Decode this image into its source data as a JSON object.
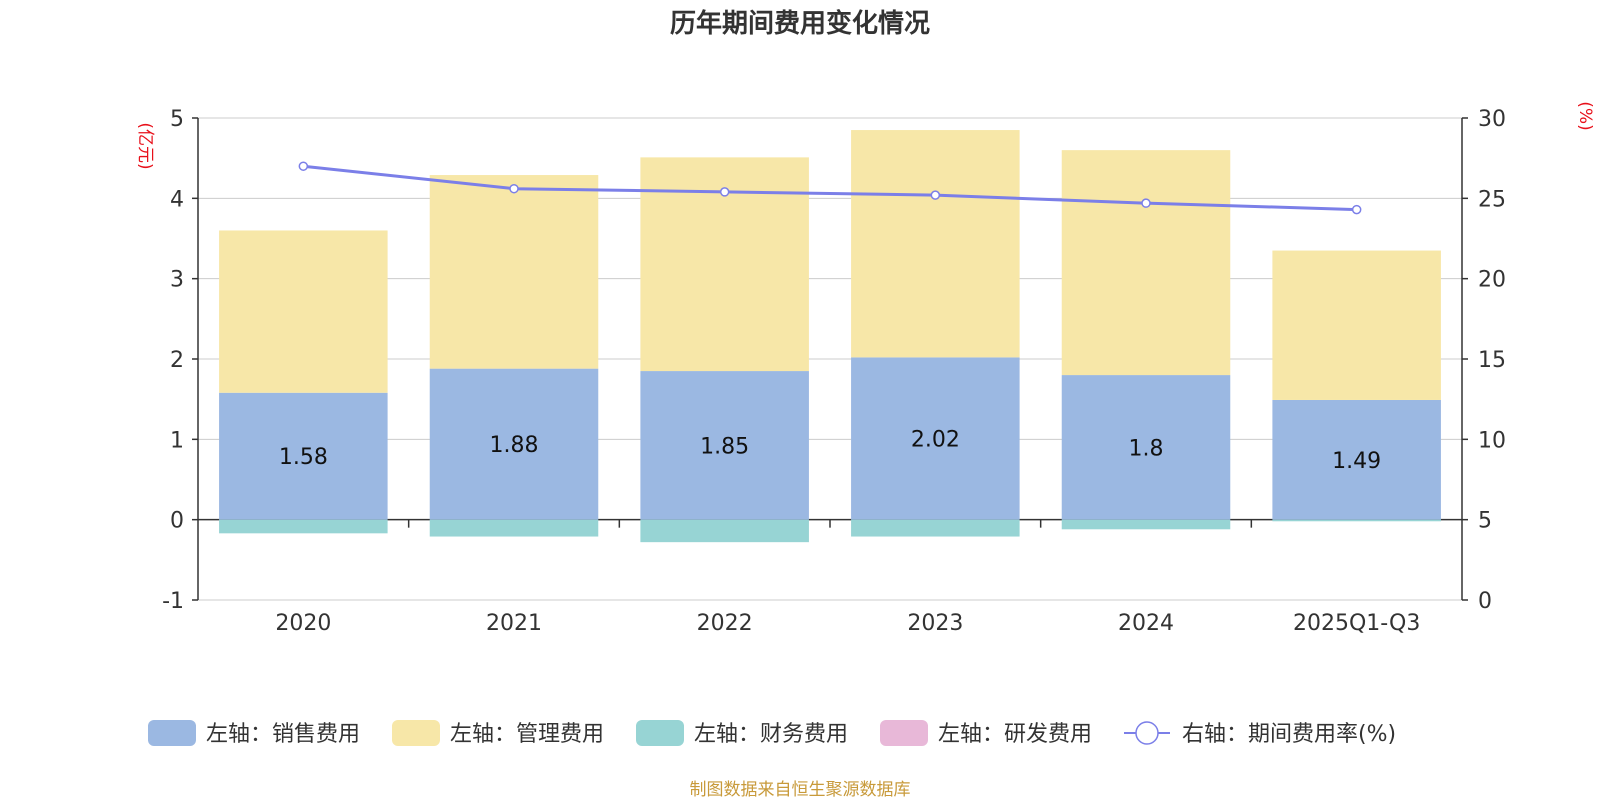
{
  "chart_data": {
    "type": "bar",
    "title": "历年期间费用变化情况",
    "categories": [
      "2020",
      "2021",
      "2022",
      "2023",
      "2024",
      "2025Q1-Q3"
    ],
    "left_axis": {
      "unit": "(亿元)",
      "min": -1,
      "max": 5,
      "ticks": [
        -1,
        0,
        1,
        2,
        3,
        4,
        5
      ]
    },
    "right_axis": {
      "unit": "(%)",
      "min": 0,
      "max": 30,
      "ticks": [
        0,
        5,
        10,
        15,
        20,
        25,
        30
      ]
    },
    "series": [
      {
        "name": "左轴：销售费用",
        "type": "stacked-bar",
        "axis": "left",
        "color": "#9bb8e2",
        "values": [
          1.58,
          1.88,
          1.85,
          2.02,
          1.8,
          1.49
        ],
        "labels": [
          "1.58",
          "1.88",
          "1.85",
          "2.02",
          "1.8",
          "1.49"
        ]
      },
      {
        "name": "左轴：管理费用",
        "type": "stacked-bar",
        "axis": "left",
        "color": "#f7e7a8",
        "values": [
          2.02,
          2.41,
          2.66,
          2.83,
          2.8,
          1.86
        ]
      },
      {
        "name": "左轴：财务费用",
        "type": "stacked-bar",
        "axis": "left",
        "color": "#97d4d4",
        "values": [
          -0.17,
          -0.21,
          -0.28,
          -0.21,
          -0.12,
          -0.02
        ]
      },
      {
        "name": "左轴：研发费用",
        "type": "stacked-bar",
        "axis": "left",
        "color": "#e8b8d8",
        "values": [
          0,
          0,
          0,
          0,
          0,
          0
        ]
      },
      {
        "name": "右轴：期间费用率(%)",
        "type": "line",
        "axis": "right",
        "color": "#7b7fe8",
        "values": [
          27.0,
          25.6,
          25.4,
          25.2,
          24.7,
          24.3
        ]
      }
    ],
    "grid": true,
    "legend": "bottom-center"
  },
  "footer": {
    "source": "制图数据来自恒生聚源数据库"
  }
}
